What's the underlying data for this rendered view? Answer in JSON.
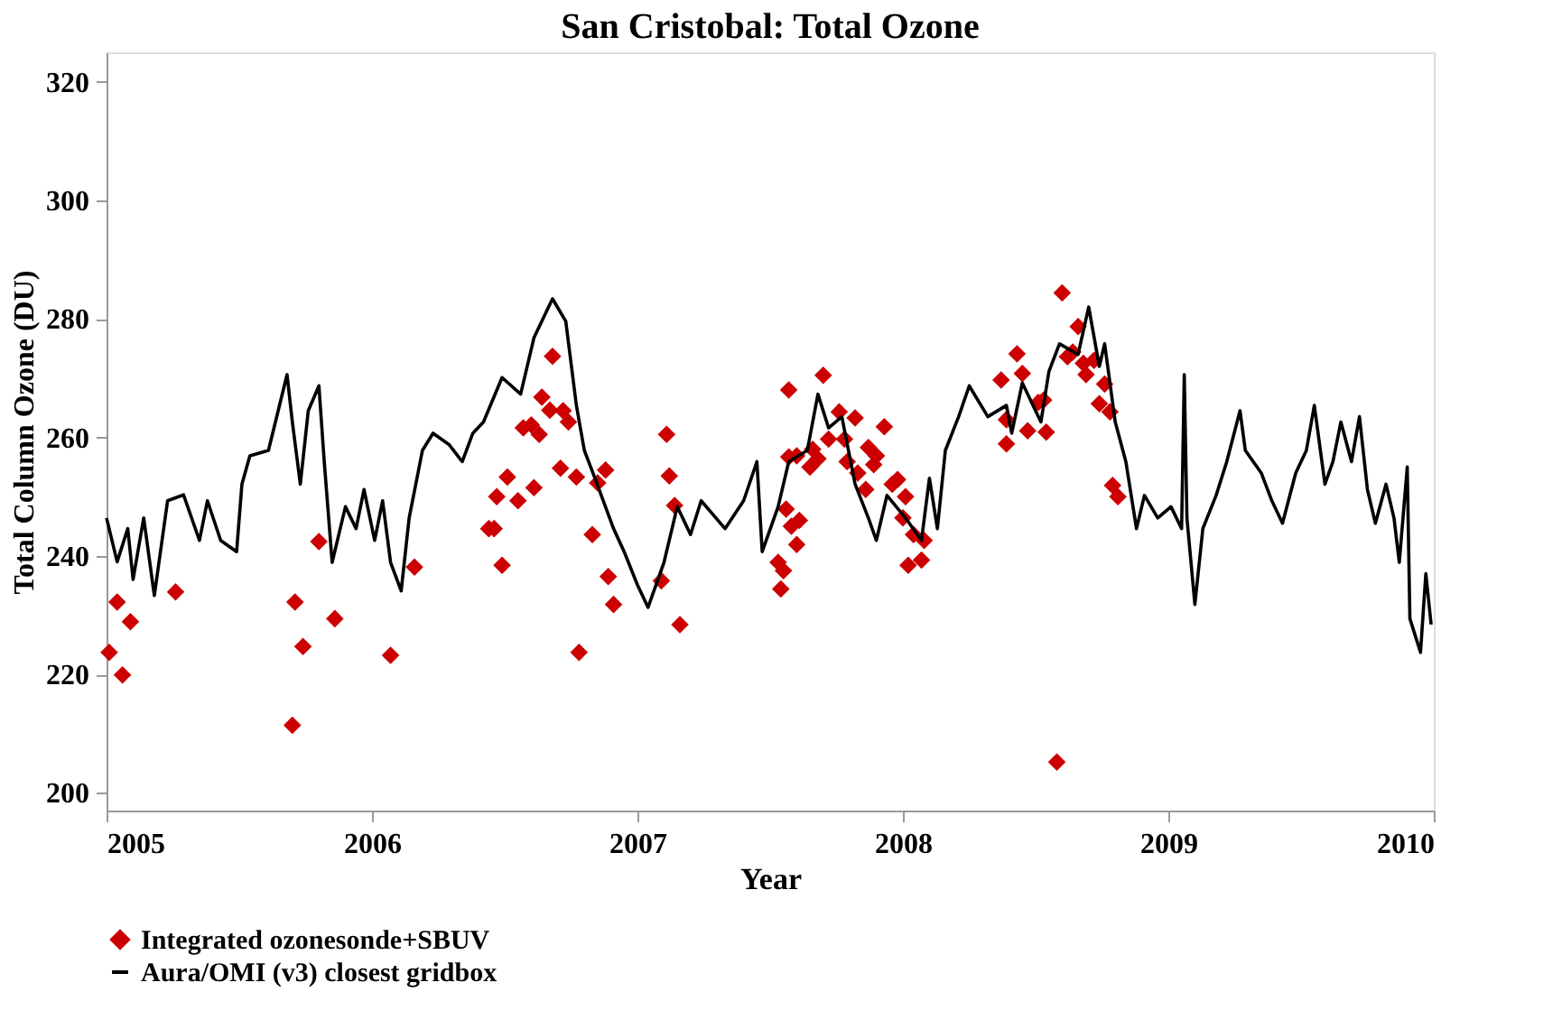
{
  "chart_data": {
    "type": "line",
    "title": "San Cristobal: Total Ozone",
    "xlabel": "Year",
    "ylabel": "Total Column Ozone (DU)",
    "xlim": [
      2005,
      2010
    ],
    "xticks": [
      2005,
      2006,
      2007,
      2008,
      2009,
      2010
    ],
    "ylim": [
      197,
      325
    ],
    "yticks": [
      200,
      220,
      240,
      260,
      280,
      300,
      320
    ],
    "grid": false,
    "legend": "bottom",
    "series": [
      {
        "name": "Integrated ozonesonde+SBUV",
        "type": "scatter",
        "marker": "diamond",
        "color": "#cc0000",
        "x": [
          2005.01,
          2005.04,
          2005.06,
          2005.09,
          2005.26,
          2005.7,
          2005.71,
          2005.74,
          2005.8,
          2005.86,
          2006.07,
          2006.16,
          2006.44,
          2006.46,
          2006.47,
          2006.49,
          2006.51,
          2006.55,
          2006.57,
          2006.6,
          2006.61,
          2006.63,
          2006.64,
          2006.67,
          2006.68,
          2006.71,
          2006.72,
          2006.74,
          2006.77,
          2006.78,
          2006.83,
          2006.85,
          2006.88,
          2006.89,
          2006.91,
          2007.09,
          2007.11,
          2007.12,
          2007.14,
          2007.16,
          2007.53,
          2007.54,
          2007.55,
          2007.56,
          2007.57,
          2007.57,
          2007.58,
          2007.6,
          2007.6,
          2007.61,
          2007.65,
          2007.66,
          2007.68,
          2007.7,
          2007.72,
          2007.76,
          2007.78,
          2007.79,
          2007.82,
          2007.83,
          2007.86,
          2007.87,
          2007.89,
          2007.9,
          2007.93,
          2007.96,
          2007.98,
          2008.0,
          2008.01,
          2008.02,
          2008.04,
          2008.07,
          2008.08,
          2008.37,
          2008.39,
          2008.39,
          2008.43,
          2008.45,
          2008.47,
          2008.51,
          2008.53,
          2008.54,
          2008.58,
          2008.6,
          2008.62,
          2008.64,
          2008.66,
          2008.68,
          2008.69,
          2008.72,
          2008.74,
          2008.76,
          2008.78,
          2008.79,
          2008.81
        ],
        "values": [
          223.7,
          232.2,
          219.9,
          228.9,
          233.9,
          211.4,
          232.2,
          224.7,
          242.4,
          229.4,
          223.2,
          238.1,
          244.6,
          244.6,
          250.0,
          238.4,
          253.3,
          249.3,
          261.6,
          262.1,
          251.5,
          260.5,
          266.8,
          264.6,
          273.7,
          254.8,
          264.5,
          262.6,
          253.3,
          223.7,
          243.6,
          252.3,
          254.5,
          236.5,
          231.8,
          235.8,
          260.5,
          253.5,
          248.5,
          228.4,
          238.9,
          234.4,
          237.5,
          247.9,
          268.0,
          256.7,
          245.0,
          241.9,
          256.9,
          246.0,
          255.0,
          258.0,
          256.4,
          270.5,
          259.7,
          264.3,
          259.7,
          255.9,
          263.3,
          254.0,
          251.2,
          258.3,
          255.4,
          256.9,
          261.8,
          252.1,
          252.9,
          246.4,
          250.0,
          238.4,
          243.6,
          239.3,
          242.6,
          269.7,
          263.0,
          258.9,
          274.1,
          270.8,
          261.1,
          265.9,
          266.3,
          260.9,
          205.2,
          284.4,
          273.6,
          274.4,
          278.7,
          272.5,
          270.6,
          273.0,
          265.7,
          269.0,
          264.3,
          251.9,
          250.0
        ]
      },
      {
        "name": "Aura/OMI (v3) closest gridbox",
        "marker": "none",
        "line_style": "solid",
        "color": "#000000",
        "x": [
          2005.0,
          2005.04,
          2005.08,
          2005.1,
          2005.14,
          2005.18,
          2005.23,
          2005.29,
          2005.35,
          2005.38,
          2005.43,
          2005.49,
          2005.51,
          2005.54,
          2005.61,
          2005.68,
          2005.7,
          2005.73,
          2005.76,
          2005.8,
          2005.82,
          2005.85,
          2005.9,
          2005.94,
          2005.97,
          2006.01,
          2006.04,
          2006.07,
          2006.11,
          2006.14,
          2006.19,
          2006.23,
          2006.29,
          2006.34,
          2006.38,
          2006.42,
          2006.49,
          2006.56,
          2006.61,
          2006.68,
          2006.73,
          2006.77,
          2006.8,
          2006.84,
          2006.91,
          2006.95,
          2007.0,
          2007.04,
          2007.1,
          2007.15,
          2007.2,
          2007.24,
          2007.33,
          2007.4,
          2007.45,
          2007.47,
          2007.53,
          2007.57,
          2007.64,
          2007.68,
          2007.72,
          2007.77,
          2007.82,
          2007.87,
          2007.9,
          2007.94,
          2008.01,
          2008.07,
          2008.1,
          2008.13,
          2008.16,
          2008.21,
          2008.25,
          2008.32,
          2008.39,
          2008.41,
          2008.45,
          2008.52,
          2008.55,
          2008.59,
          2008.66,
          2008.7,
          2008.74,
          2008.76,
          2008.8,
          2008.84,
          2008.88,
          2008.91,
          2008.96,
          2009.01,
          2009.05,
          2009.06,
          2009.07,
          2009.1,
          2009.13,
          2009.18,
          2009.22,
          2009.27,
          2009.29,
          2009.35,
          2009.39,
          2009.43,
          2009.48,
          2009.52,
          2009.55,
          2009.59,
          2009.62,
          2009.65,
          2009.69,
          2009.72,
          2009.75,
          2009.78,
          2009.82,
          2009.85,
          2009.87,
          2009.9,
          2009.91,
          2009.95,
          2009.97,
          2009.99
        ],
        "values": [
          246.4,
          239.0,
          244.6,
          236.0,
          246.4,
          233.3,
          249.3,
          250.3,
          242.6,
          249.3,
          242.6,
          240.7,
          252.1,
          256.9,
          257.8,
          270.6,
          262.6,
          252.1,
          264.5,
          268.7,
          256.0,
          238.9,
          248.3,
          244.6,
          251.2,
          242.6,
          249.3,
          238.9,
          234.1,
          246.4,
          257.8,
          260.7,
          258.8,
          255.9,
          260.7,
          262.6,
          270.1,
          267.3,
          276.8,
          283.4,
          279.6,
          265.4,
          257.8,
          253.1,
          244.6,
          240.7,
          235.1,
          231.3,
          238.9,
          248.3,
          243.6,
          249.3,
          244.6,
          249.3,
          255.9,
          240.7,
          248.3,
          255.9,
          257.8,
          267.3,
          261.6,
          263.5,
          252.1,
          246.4,
          242.6,
          250.2,
          246.4,
          242.6,
          253.1,
          244.6,
          257.8,
          263.5,
          268.7,
          263.5,
          265.4,
          260.7,
          269.2,
          262.6,
          271.1,
          275.8,
          274.0,
          282.0,
          272.0,
          275.8,
          262.6,
          255.9,
          244.6,
          250.2,
          246.4,
          248.3,
          244.6,
          270.6,
          246.4,
          231.8,
          244.6,
          250.2,
          255.9,
          264.5,
          257.8,
          254.0,
          249.3,
          245.5,
          254.0,
          257.8,
          265.4,
          252.1,
          255.9,
          262.6,
          255.9,
          263.5,
          251.2,
          245.5,
          252.1,
          246.4,
          238.9,
          255.0,
          229.4,
          223.7,
          237.0,
          228.4
        ]
      }
    ]
  }
}
